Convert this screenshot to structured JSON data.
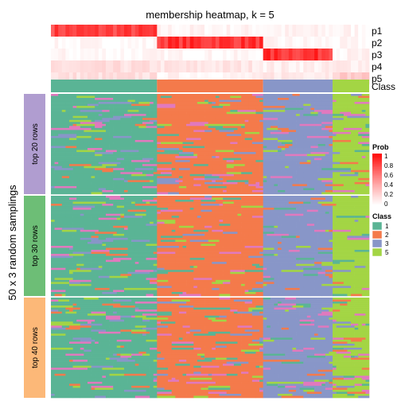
{
  "chart_data": {
    "type": "heatmap",
    "title": "membership heatmap, k = 5",
    "ylabel": "50 x 3 random samplings",
    "column_groups": [
      "1",
      "2",
      "3",
      "5"
    ],
    "column_group_counts": [
      29,
      29,
      19,
      10
    ],
    "membership_rows": [
      "p1",
      "p2",
      "p3",
      "p4",
      "p5"
    ],
    "class_row_label": "Class",
    "membership_group_levels": [
      [
        0.8,
        0.05,
        0.05,
        0.05,
        0.05
      ],
      [
        0.02,
        0.85,
        0.03,
        0.02,
        0.02
      ],
      [
        0.03,
        0.03,
        0.85,
        0.05,
        0.45
      ],
      [
        0.15,
        0.12,
        0.08,
        0.1,
        0.12
      ],
      [
        0.15,
        0.05,
        0.12,
        0.25,
        0.35
      ]
    ],
    "row_slices": [
      {
        "label": "top 20 rows",
        "color": "#B09DD0",
        "samplings": 50
      },
      {
        "label": "top 30 rows",
        "color": "#6DBE76",
        "samplings": 50
      },
      {
        "label": "top 40 rows",
        "color": "#FCB878",
        "samplings": 50
      }
    ],
    "prob_legend": {
      "title": "Prob",
      "ticks": [
        "1",
        "0.8",
        "0.6",
        "0.4",
        "0.2",
        "0"
      ]
    },
    "class_legend": {
      "title": "Class",
      "items": [
        {
          "label": "1",
          "color": "#5AB495"
        },
        {
          "label": "2",
          "color": "#F47A4B"
        },
        {
          "label": "3",
          "color": "#8896C8"
        },
        {
          "label": "5",
          "color": "#A3D544"
        }
      ]
    },
    "extra_class_color": "#E179BE"
  }
}
